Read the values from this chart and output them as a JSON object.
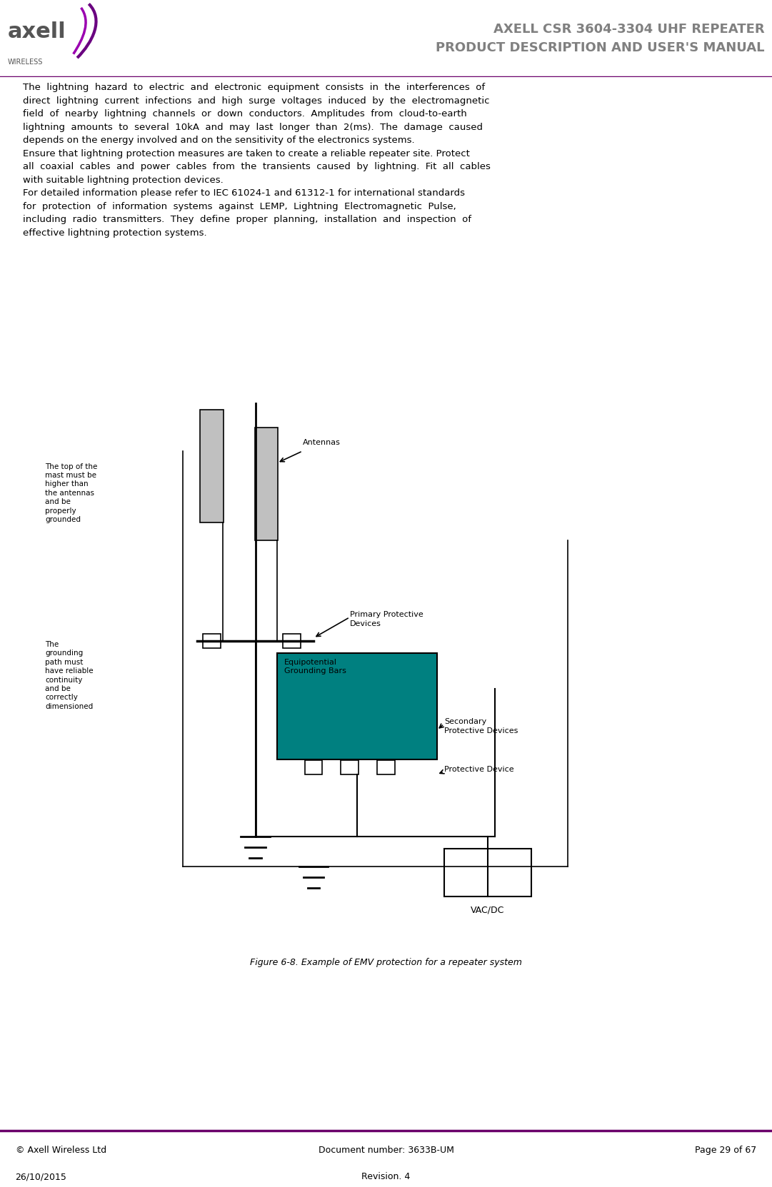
{
  "title_line1": "AXELL CSR 3604-3304 UHF REPEATER",
  "title_line2": "PRODUCT DESCRIPTION AND USER'S MANUAL",
  "title_color": "#808080",
  "header_line_color": "#6a006a",
  "footer_line_color": "#6a006a",
  "footer_left_line1": "© Axell Wireless Ltd",
  "footer_left_line2": "26/10/2015",
  "footer_center_line1": "Document number: 3633B-UM",
  "footer_center_line2": "Revision. 4",
  "footer_right_line1": "Page 29 of 67",
  "body_text": "The  lightning  hazard  to  electric  and  electronic  equipment  consists  in  the  interferences  of\ndirect  lightning  current  infections  and  high  surge  voltages  induced  by  the  electromagnetic\nfield  of  nearby  lightning  channels  or  down  conductors.  Amplitudes  from  cloud-to-earth\nlightning  amounts  to  several  10kA  and  may  last  longer  than  2(ms).  The  damage  caused\ndepends on the energy involved and on the sensitivity of the electronics systems.\nEnsure that lightning protection measures are taken to create a reliable repeater site. Protect\nall  coaxial  cables  and  power  cables  from  the  transients  caused  by  lightning.  Fit  all  cables\nwith suitable lightning protection devices.\nFor detailed information please refer to IEC 61024-1 and 61312-1 for international standards\nfor  protection  of  information  systems  against  LEMP,  Lightning  Electromagnetic  Pulse,\nincluding  radio  transmitters.  They  define  proper  planning,  installation  and  inspection  of\neffective lightning protection systems.",
  "figure_caption": "Figure 6-8. Example of EMV protection for a repeater system",
  "diagram_labels": {
    "antennas": "Antennas",
    "primary": "Primary Protective\nDevices",
    "equipotential": "Equipotential\nGrounding Bars",
    "secondary": "Secondary\nProtective Devices",
    "protective": "Protective Device",
    "vadc": "VAC/DC",
    "mast_note": "The top of the\nmast must be\nhigher than\nthe antennas\nand be\nproperly\ngrounded",
    "grounding_note": "The\ngrounding\npath must\nhave reliable\ncontinuity\nand be\ncorrectly\ndimensioned"
  },
  "teal_color": "#008080",
  "black": "#000000",
  "white": "#ffffff",
  "light_gray": "#d0d0d0",
  "bg_color": "#ffffff"
}
